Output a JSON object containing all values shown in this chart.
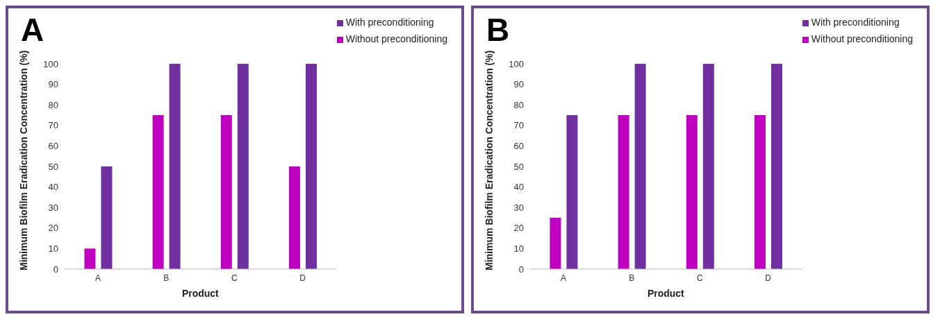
{
  "chart_data": [
    {
      "type": "bar",
      "title": "A",
      "xlabel": "Product",
      "ylabel": "Minimum Biofilm Eradication Concentration (%)",
      "categories": [
        "A",
        "B",
        "C",
        "D"
      ],
      "series": [
        {
          "name": "Without preconditioning",
          "color": "#c000c0",
          "values": [
            10,
            75,
            75,
            50
          ]
        },
        {
          "name": "With preconditioning",
          "color": "#7030a0",
          "values": [
            50,
            100,
            100,
            100
          ]
        }
      ],
      "ylim": [
        0,
        100
      ],
      "yticks": [
        0,
        10,
        20,
        30,
        40,
        50,
        60,
        70,
        80,
        90,
        100
      ],
      "grid": false,
      "legend": "top right"
    },
    {
      "type": "bar",
      "title": "B",
      "xlabel": "Product",
      "ylabel": "Minimum Biofilm Eradication Concentration (%)",
      "categories": [
        "A",
        "B",
        "C",
        "D"
      ],
      "series": [
        {
          "name": "Without preconditioning",
          "color": "#c000c0",
          "values": [
            25,
            75,
            75,
            75
          ]
        },
        {
          "name": "With preconditioning",
          "color": "#7030a0",
          "values": [
            75,
            100,
            100,
            100
          ]
        }
      ],
      "ylim": [
        0,
        100
      ],
      "yticks": [
        0,
        10,
        20,
        30,
        40,
        50,
        60,
        70,
        80,
        90,
        100
      ],
      "grid": false,
      "legend": "top right"
    }
  ]
}
